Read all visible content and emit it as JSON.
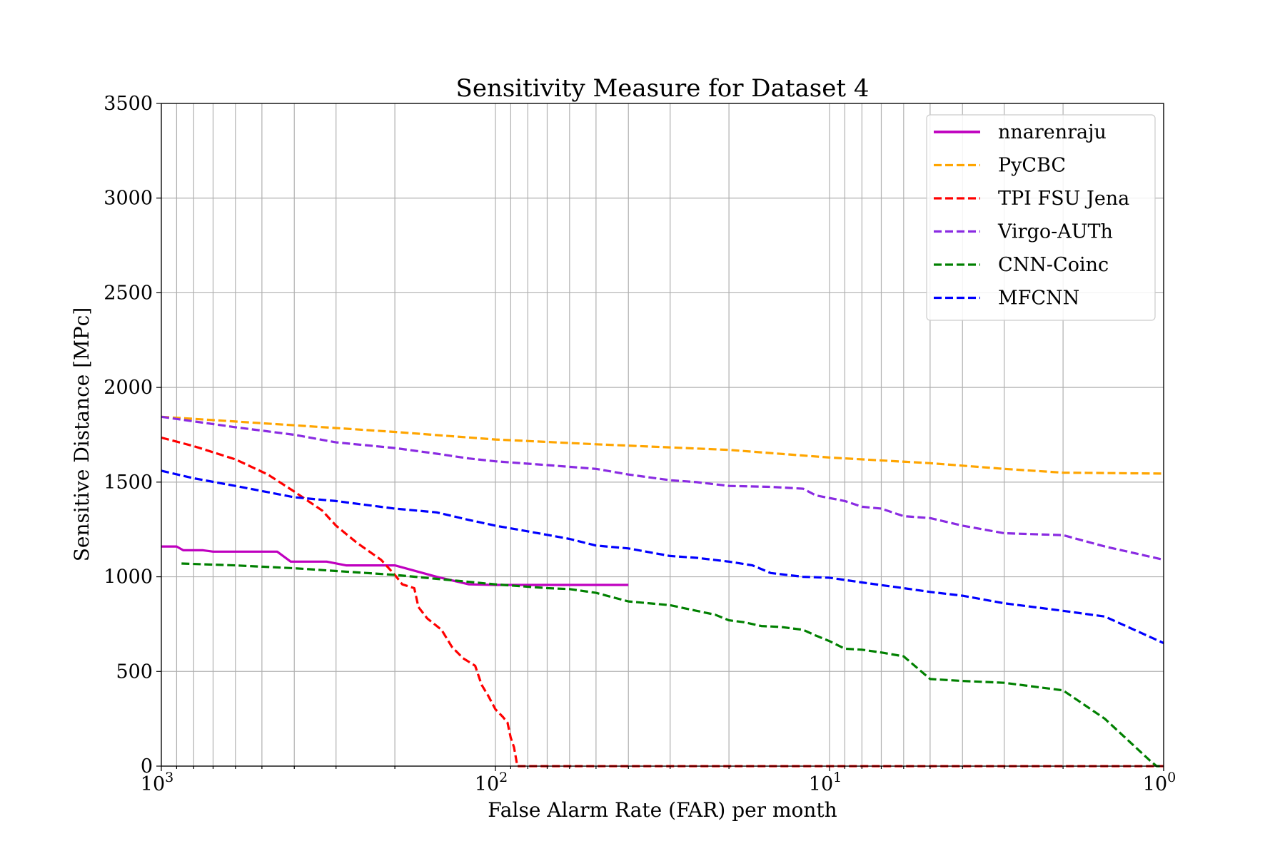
{
  "chart_data": {
    "type": "line",
    "title": "Sensitivity Measure for Dataset 4",
    "xlabel": "False Alarm Rate (FAR) per month",
    "ylabel": "Sensitive Distance [MPc]",
    "x_scale": "log",
    "x_reversed": true,
    "xlim": [
      1000,
      1
    ],
    "ylim": [
      0,
      3500
    ],
    "grid": "both (major and minor)",
    "legend_position": "top-right",
    "x_ticks": [
      {
        "value": 1000,
        "base": "10",
        "exp": "3"
      },
      {
        "value": 100,
        "base": "10",
        "exp": "2"
      },
      {
        "value": 10,
        "base": "10",
        "exp": "1"
      },
      {
        "value": 1,
        "base": "10",
        "exp": "0"
      }
    ],
    "y_ticks": [
      "0",
      "500",
      "1000",
      "1500",
      "2000",
      "2500",
      "3000",
      "3500"
    ],
    "series": [
      {
        "name": "nnarenraju",
        "color": "#bf00bf",
        "style": "solid",
        "points": [
          [
            1000,
            1160
          ],
          [
            900,
            1160
          ],
          [
            860,
            1140
          ],
          [
            750,
            1140
          ],
          [
            700,
            1133
          ],
          [
            450,
            1133
          ],
          [
            410,
            1080
          ],
          [
            320,
            1080
          ],
          [
            280,
            1060
          ],
          [
            200,
            1060
          ],
          [
            150,
            1000
          ],
          [
            120,
            960
          ],
          [
            100,
            957
          ],
          [
            40,
            957
          ]
        ]
      },
      {
        "name": "PyCBC",
        "color": "#ffa500",
        "style": "dashed",
        "points": [
          [
            1000,
            1845
          ],
          [
            600,
            1820
          ],
          [
            400,
            1800
          ],
          [
            200,
            1765
          ],
          [
            100,
            1725
          ],
          [
            50,
            1700
          ],
          [
            20,
            1670
          ],
          [
            10,
            1630
          ],
          [
            5,
            1600
          ],
          [
            3,
            1570
          ],
          [
            2,
            1550
          ],
          [
            1,
            1545
          ]
        ]
      },
      {
        "name": "TPI FSU Jena",
        "color": "#ff0000",
        "style": "dashed",
        "points": [
          [
            1000,
            1735
          ],
          [
            800,
            1690
          ],
          [
            600,
            1620
          ],
          [
            480,
            1540
          ],
          [
            400,
            1450
          ],
          [
            330,
            1350
          ],
          [
            300,
            1270
          ],
          [
            260,
            1180
          ],
          [
            220,
            1090
          ],
          [
            200,
            1010
          ],
          [
            190,
            960
          ],
          [
            175,
            940
          ],
          [
            170,
            840
          ],
          [
            160,
            780
          ],
          [
            145,
            720
          ],
          [
            135,
            630
          ],
          [
            125,
            570
          ],
          [
            115,
            530
          ],
          [
            110,
            430
          ],
          [
            105,
            370
          ],
          [
            100,
            300
          ],
          [
            95,
            260
          ],
          [
            92,
            230
          ],
          [
            90,
            150
          ],
          [
            88,
            100
          ],
          [
            86,
            0
          ],
          [
            1,
            0
          ]
        ]
      },
      {
        "name": "Virgo-AUTh",
        "color": "#8a2be2",
        "style": "dashed",
        "points": [
          [
            1000,
            1845
          ],
          [
            600,
            1790
          ],
          [
            400,
            1750
          ],
          [
            300,
            1710
          ],
          [
            200,
            1680
          ],
          [
            150,
            1650
          ],
          [
            120,
            1625
          ],
          [
            100,
            1610
          ],
          [
            70,
            1590
          ],
          [
            50,
            1570
          ],
          [
            40,
            1540
          ],
          [
            30,
            1510
          ],
          [
            25,
            1500
          ],
          [
            20,
            1480
          ],
          [
            15,
            1475
          ],
          [
            12,
            1465
          ],
          [
            11,
            1430
          ],
          [
            9,
            1400
          ],
          [
            8,
            1370
          ],
          [
            7,
            1360
          ],
          [
            6,
            1320
          ],
          [
            5,
            1310
          ],
          [
            4,
            1270
          ],
          [
            3,
            1230
          ],
          [
            2,
            1220
          ],
          [
            1.5,
            1160
          ],
          [
            1,
            1090
          ]
        ]
      },
      {
        "name": "CNN-Coinc",
        "color": "#008000",
        "style": "dashed",
        "points": [
          [
            870,
            1070
          ],
          [
            600,
            1060
          ],
          [
            400,
            1045
          ],
          [
            200,
            1010
          ],
          [
            100,
            960
          ],
          [
            70,
            940
          ],
          [
            60,
            935
          ],
          [
            50,
            915
          ],
          [
            40,
            870
          ],
          [
            30,
            850
          ],
          [
            25,
            820
          ],
          [
            22,
            800
          ],
          [
            20,
            770
          ],
          [
            18,
            760
          ],
          [
            16,
            740
          ],
          [
            14,
            735
          ],
          [
            12,
            720
          ],
          [
            11,
            690
          ],
          [
            10,
            660
          ],
          [
            9,
            620
          ],
          [
            8,
            615
          ],
          [
            7,
            600
          ],
          [
            6,
            580
          ],
          [
            5,
            460
          ],
          [
            4,
            450
          ],
          [
            3,
            440
          ],
          [
            2,
            400
          ],
          [
            1.5,
            250
          ],
          [
            1.1,
            30
          ],
          [
            1.05,
            0
          ],
          [
            1,
            0
          ]
        ]
      },
      {
        "name": "MFCNN",
        "color": "#0000ff",
        "style": "dashed",
        "points": [
          [
            1000,
            1560
          ],
          [
            800,
            1520
          ],
          [
            600,
            1480
          ],
          [
            400,
            1420
          ],
          [
            300,
            1400
          ],
          [
            200,
            1360
          ],
          [
            150,
            1340
          ],
          [
            120,
            1300
          ],
          [
            100,
            1270
          ],
          [
            80,
            1240
          ],
          [
            60,
            1200
          ],
          [
            50,
            1165
          ],
          [
            40,
            1150
          ],
          [
            30,
            1110
          ],
          [
            25,
            1100
          ],
          [
            20,
            1080
          ],
          [
            17,
            1060
          ],
          [
            15,
            1020
          ],
          [
            12,
            1000
          ],
          [
            10,
            995
          ],
          [
            8,
            970
          ],
          [
            6,
            940
          ],
          [
            5,
            920
          ],
          [
            4,
            900
          ],
          [
            3,
            860
          ],
          [
            2,
            820
          ],
          [
            1.5,
            790
          ],
          [
            1,
            650
          ]
        ]
      }
    ]
  }
}
